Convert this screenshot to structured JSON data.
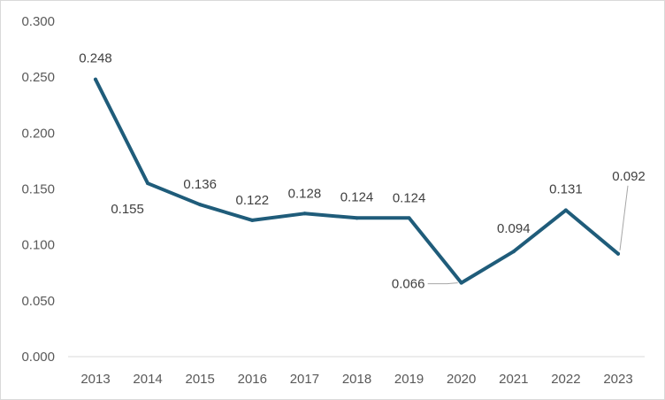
{
  "chart_data": {
    "type": "line",
    "categories": [
      "2013",
      "2014",
      "2015",
      "2016",
      "2017",
      "2018",
      "2019",
      "2020",
      "2021",
      "2022",
      "2023"
    ],
    "series": [
      {
        "values": [
          0.248,
          0.155,
          0.136,
          0.122,
          0.128,
          0.124,
          0.124,
          0.066,
          0.094,
          0.131,
          0.092
        ]
      }
    ],
    "data_labels": [
      "0.248",
      "0.155",
      "0.136",
      "0.122",
      "0.128",
      "0.124",
      "0.124",
      "0.066",
      "0.094",
      "0.131",
      "0.092"
    ],
    "y_ticks": [
      "0.000",
      "0.050",
      "0.100",
      "0.150",
      "0.200",
      "0.250",
      "0.300"
    ],
    "ylim": [
      0,
      0.3
    ],
    "grid": false,
    "legend": "none",
    "line_color": "#1f5c7a",
    "leader_line_color": "#a6a6a6"
  }
}
